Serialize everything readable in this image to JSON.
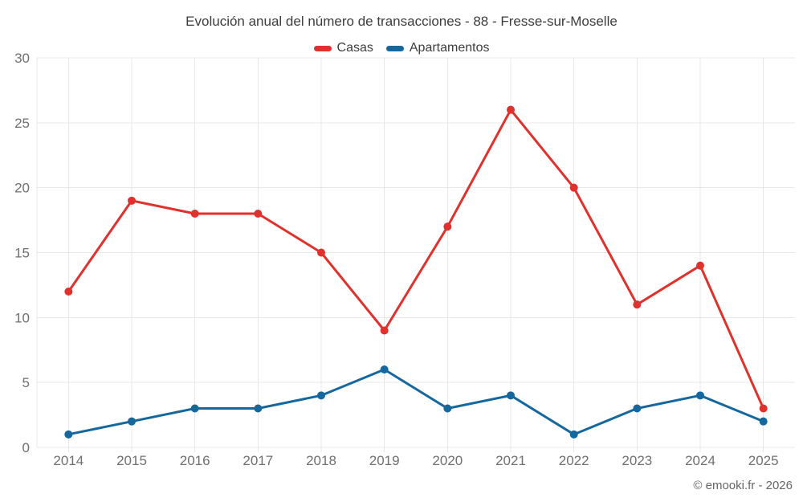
{
  "chart_data": {
    "type": "line",
    "title": "Evolución anual del número de transacciones - 88 - Fresse-sur-Moselle",
    "categories": [
      "2014",
      "2015",
      "2016",
      "2017",
      "2018",
      "2019",
      "2020",
      "2021",
      "2022",
      "2023",
      "2024",
      "2025"
    ],
    "series": [
      {
        "name": "Casas",
        "color": "#e0312d",
        "values": [
          12,
          19,
          18,
          18,
          15,
          9,
          17,
          26,
          20,
          11,
          14,
          3
        ]
      },
      {
        "name": "Apartamentos",
        "color": "#15689e",
        "values": [
          1,
          2,
          3,
          3,
          4,
          6,
          3,
          4,
          1,
          3,
          4,
          2
        ]
      }
    ],
    "ylim": [
      0,
      30
    ],
    "yticks": [
      0,
      5,
      10,
      15,
      20,
      25,
      30
    ],
    "grid": true,
    "legend_position": "top",
    "xlabel": "",
    "ylabel": ""
  },
  "footer": {
    "credit": "© emooki.fr - 2026"
  },
  "colors": {
    "background": "#ffffff",
    "gridline": "#e8e8e8",
    "axis_label": "#6f6f6f",
    "title_text": "#3d3d3d",
    "credit_text": "#666666"
  }
}
